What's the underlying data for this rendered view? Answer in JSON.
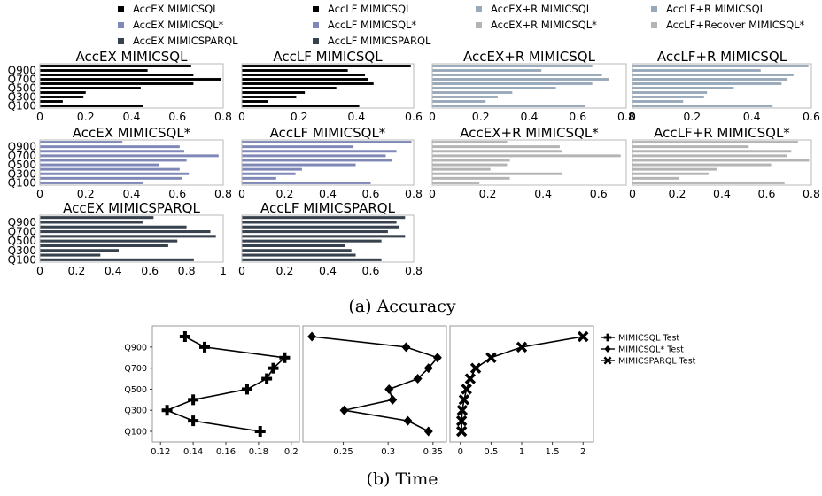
{
  "caption_a": "(a) Accuracy",
  "caption_b": "(b) Time",
  "legend_a": [
    {
      "label": "AccEX MIMICSQL",
      "color": "#000000"
    },
    {
      "label": "AccLF MIMICSQL",
      "color": "#000000"
    },
    {
      "label": "AccEX+R MIMICSQL",
      "color": "#98a9ba"
    },
    {
      "label": "AccLF+R MIMICSQL",
      "color": "#98a9ba"
    },
    {
      "label": "AccEX MIMICSQL*",
      "color": "#8088b8"
    },
    {
      "label": "AccLF MIMICSQL*",
      "color": "#8088b8"
    },
    {
      "label": "AccEX+R MIMICSQL*",
      "color": "#b4b4b4"
    },
    {
      "label": "AccLF+Recover MIMICSQL*",
      "color": "#b4b4b4"
    },
    {
      "label": "AccEX MIMICSPARQL",
      "color": "#38424e"
    },
    {
      "label": "AccLF MIMICSPARQL",
      "color": "#38424e"
    }
  ],
  "legend_b": [
    {
      "label": "MIMICSQL Test",
      "marker": "plus"
    },
    {
      "label": "MIMICSQL* Test",
      "marker": "diamond"
    },
    {
      "label": "MIMICSPARQL Test",
      "marker": "x"
    }
  ],
  "chart_data": [
    {
      "type": "bar",
      "orientation": "horizontal",
      "title": "AccEX MIMICSQL",
      "color": "#000000",
      "categories": [
        "Q100",
        "Q200",
        "Q300",
        "Q400",
        "Q500",
        "Q600",
        "Q700",
        "Q800",
        "Q900",
        "Q1000"
      ],
      "tick_labels_shown": [
        "Q100",
        "Q300",
        "Q500",
        "Q700",
        "Q900"
      ],
      "values": [
        0.45,
        0.1,
        0.19,
        0.2,
        0.44,
        0.67,
        0.79,
        0.67,
        0.47,
        0.66
      ],
      "xlim": [
        0,
        0.8
      ],
      "xticks": [
        "0",
        "0.2",
        "0.4",
        "0.6",
        "0.8"
      ]
    },
    {
      "type": "bar",
      "orientation": "horizontal",
      "title": "AccLF MIMICSQL",
      "color": "#000000",
      "categories": [
        "Q100",
        "Q200",
        "Q300",
        "Q400",
        "Q500",
        "Q600",
        "Q700",
        "Q800",
        "Q900",
        "Q1000"
      ],
      "values": [
        0.41,
        0.09,
        0.19,
        0.22,
        0.33,
        0.46,
        0.44,
        0.43,
        0.37,
        0.59
      ],
      "xlim": [
        0,
        0.6
      ],
      "xticks": [
        "0",
        "0.2",
        "0.4",
        "0.6"
      ]
    },
    {
      "type": "bar",
      "orientation": "horizontal",
      "title": "AccEX+R MIMICSQL",
      "color": "#98a9ba",
      "categories": [
        "Q100",
        "Q200",
        "Q300",
        "Q400",
        "Q500",
        "Q600",
        "Q700",
        "Q800",
        "Q900",
        "Q1000"
      ],
      "values": [
        0.63,
        0.22,
        0.27,
        0.33,
        0.51,
        0.66,
        0.73,
        0.7,
        0.45,
        0.66
      ],
      "xlim": [
        0,
        0.8
      ],
      "xticks": [
        "0",
        "0.2",
        "0.4",
        "0.6",
        "0.8"
      ]
    },
    {
      "type": "bar",
      "orientation": "horizontal",
      "title": "AccLF+R MIMICSQL",
      "color": "#98a9ba",
      "categories": [
        "Q100",
        "Q200",
        "Q300",
        "Q400",
        "Q500",
        "Q600",
        "Q700",
        "Q800",
        "Q900",
        "Q1000"
      ],
      "values": [
        0.47,
        0.17,
        0.24,
        0.25,
        0.34,
        0.5,
        0.52,
        0.54,
        0.43,
        0.59
      ],
      "xlim": [
        0,
        0.6
      ],
      "xticks": [
        "0",
        "0.2",
        "0.4",
        "0.6"
      ]
    },
    {
      "type": "bar",
      "orientation": "horizontal",
      "title": "AccEX MIMICSQL*",
      "color": "#8088b8",
      "categories": [
        "Q100",
        "Q200",
        "Q300",
        "Q400",
        "Q500",
        "Q600",
        "Q700",
        "Q800",
        "Q900",
        "Q1000"
      ],
      "values": [
        0.45,
        0.62,
        0.65,
        0.61,
        0.52,
        0.64,
        0.78,
        0.63,
        0.61,
        0.36
      ],
      "xlim": [
        0,
        0.8
      ],
      "xticks": [
        "0",
        "0.2",
        "0.4",
        "0.6",
        "0.8"
      ]
    },
    {
      "type": "bar",
      "orientation": "horizontal",
      "title": "AccLF MIMICSQL*",
      "color": "#8088b8",
      "categories": [
        "Q100",
        "Q200",
        "Q300",
        "Q400",
        "Q500",
        "Q600",
        "Q700",
        "Q800",
        "Q900",
        "Q1000"
      ],
      "values": [
        0.6,
        0.16,
        0.25,
        0.28,
        0.53,
        0.7,
        0.67,
        0.72,
        0.52,
        0.79
      ],
      "xlim": [
        0,
        0.8
      ],
      "xticks": [
        "0",
        "0.2",
        "0.4",
        "0.6",
        "0.8"
      ]
    },
    {
      "type": "bar",
      "orientation": "horizontal",
      "title": "AccEX+R MIMICSQL*",
      "color": "#b4b4b4",
      "categories": [
        "Q100",
        "Q200",
        "Q300",
        "Q400",
        "Q500",
        "Q600",
        "Q700",
        "Q800",
        "Q900",
        "Q1000"
      ],
      "values": [
        0.17,
        0.28,
        0.47,
        0.21,
        0.27,
        0.28,
        0.68,
        0.47,
        0.46,
        0.27
      ],
      "xlim": [
        0,
        0.7
      ],
      "xticks": [
        "0",
        "0.2",
        "0.4",
        "0.6"
      ]
    },
    {
      "type": "bar",
      "orientation": "horizontal",
      "title": "AccLF+R MIMICSQL*",
      "color": "#b4b4b4",
      "categories": [
        "Q100",
        "Q200",
        "Q300",
        "Q400",
        "Q500",
        "Q600",
        "Q700",
        "Q800",
        "Q900",
        "Q1000"
      ],
      "values": [
        0.68,
        0.21,
        0.34,
        0.38,
        0.62,
        0.79,
        0.69,
        0.71,
        0.52,
        0.74
      ],
      "xlim": [
        0,
        0.8
      ],
      "xticks": [
        "0",
        "0.2",
        "0.4",
        "0.6",
        "0.8"
      ]
    },
    {
      "type": "bar",
      "orientation": "horizontal",
      "title": "AccEX MIMICSPARQL",
      "color": "#38424e",
      "categories": [
        "Q100",
        "Q200",
        "Q300",
        "Q400",
        "Q500",
        "Q600",
        "Q700",
        "Q800",
        "Q900",
        "Q1000"
      ],
      "values": [
        0.84,
        0.33,
        0.43,
        0.7,
        0.75,
        0.96,
        0.93,
        0.8,
        0.56,
        0.62
      ],
      "xlim": [
        0,
        1
      ],
      "xticks": [
        "0",
        "0.2",
        "0.4",
        "0.6",
        "0.8",
        "1"
      ]
    },
    {
      "type": "bar",
      "orientation": "horizontal",
      "title": "AccLF MIMICSPARQL",
      "color": "#38424e",
      "categories": [
        "Q100",
        "Q200",
        "Q300",
        "Q400",
        "Q500",
        "Q600",
        "Q700",
        "Q800",
        "Q900",
        "Q1000"
      ],
      "values": [
        0.65,
        0.53,
        0.51,
        0.48,
        0.65,
        0.76,
        0.68,
        0.73,
        0.72,
        0.76
      ],
      "xlim": [
        0,
        0.8
      ],
      "xticks": [
        "0",
        "0.2",
        "0.4",
        "0.6",
        "0.8"
      ]
    },
    {
      "type": "line",
      "title": "",
      "series_name": "MIMICSQL Test",
      "marker": "plus",
      "y": [
        "Q100",
        "Q200",
        "Q300",
        "Q400",
        "Q500",
        "Q600",
        "Q700",
        "Q800",
        "Q900",
        "Q1000"
      ],
      "yticks": [
        "Q100",
        "Q300",
        "Q500",
        "Q700",
        "Q900"
      ],
      "x": [
        0.181,
        0.14,
        0.124,
        0.14,
        0.173,
        0.185,
        0.189,
        0.196,
        0.147,
        0.135
      ],
      "xlim": [
        0.115,
        0.205
      ],
      "xticks": [
        "0.12",
        "0.14",
        "0.16",
        "0.18",
        "0.2"
      ]
    },
    {
      "type": "line",
      "title": "",
      "series_name": "MIMICSQL* Test",
      "marker": "diamond",
      "y": [
        "Q100",
        "Q200",
        "Q300",
        "Q400",
        "Q500",
        "Q600",
        "Q700",
        "Q800",
        "Q900",
        "Q1000"
      ],
      "x": [
        0.345,
        0.322,
        0.251,
        0.305,
        0.301,
        0.333,
        0.345,
        0.355,
        0.32,
        0.215
      ],
      "xlim": [
        0.205,
        0.365
      ],
      "xticks": [
        "0.25",
        "0.3",
        "0.35"
      ]
    },
    {
      "type": "line",
      "title": "",
      "series_name": "MIMICSPARQL Test",
      "marker": "x",
      "y": [
        "Q100",
        "Q200",
        "Q300",
        "Q400",
        "Q500",
        "Q600",
        "Q700",
        "Q800",
        "Q900",
        "Q1000"
      ],
      "x": [
        0.02,
        0.02,
        0.03,
        0.06,
        0.1,
        0.16,
        0.25,
        0.5,
        1.0,
        2.0
      ],
      "xlim": [
        -0.17,
        2.17
      ],
      "xticks": [
        "0",
        "0.5",
        "1",
        "1.5",
        "2"
      ]
    }
  ]
}
